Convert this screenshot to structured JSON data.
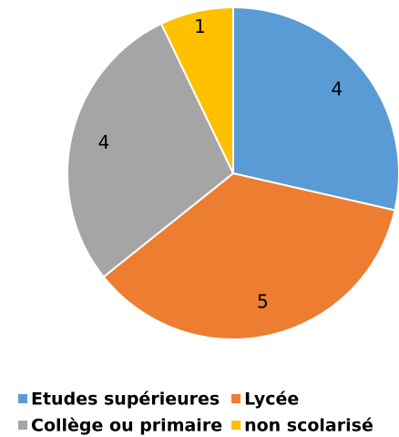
{
  "chart_data": {
    "type": "pie",
    "categories": [
      "Etudes supérieures",
      "Lycée",
      "Collège ou primaire",
      "non scolarisé"
    ],
    "values": [
      4,
      5,
      4,
      1
    ],
    "colors": [
      "#5b9bd5",
      "#ed7d31",
      "#a5a5a5",
      "#ffc000"
    ],
    "legend": "bottom"
  }
}
